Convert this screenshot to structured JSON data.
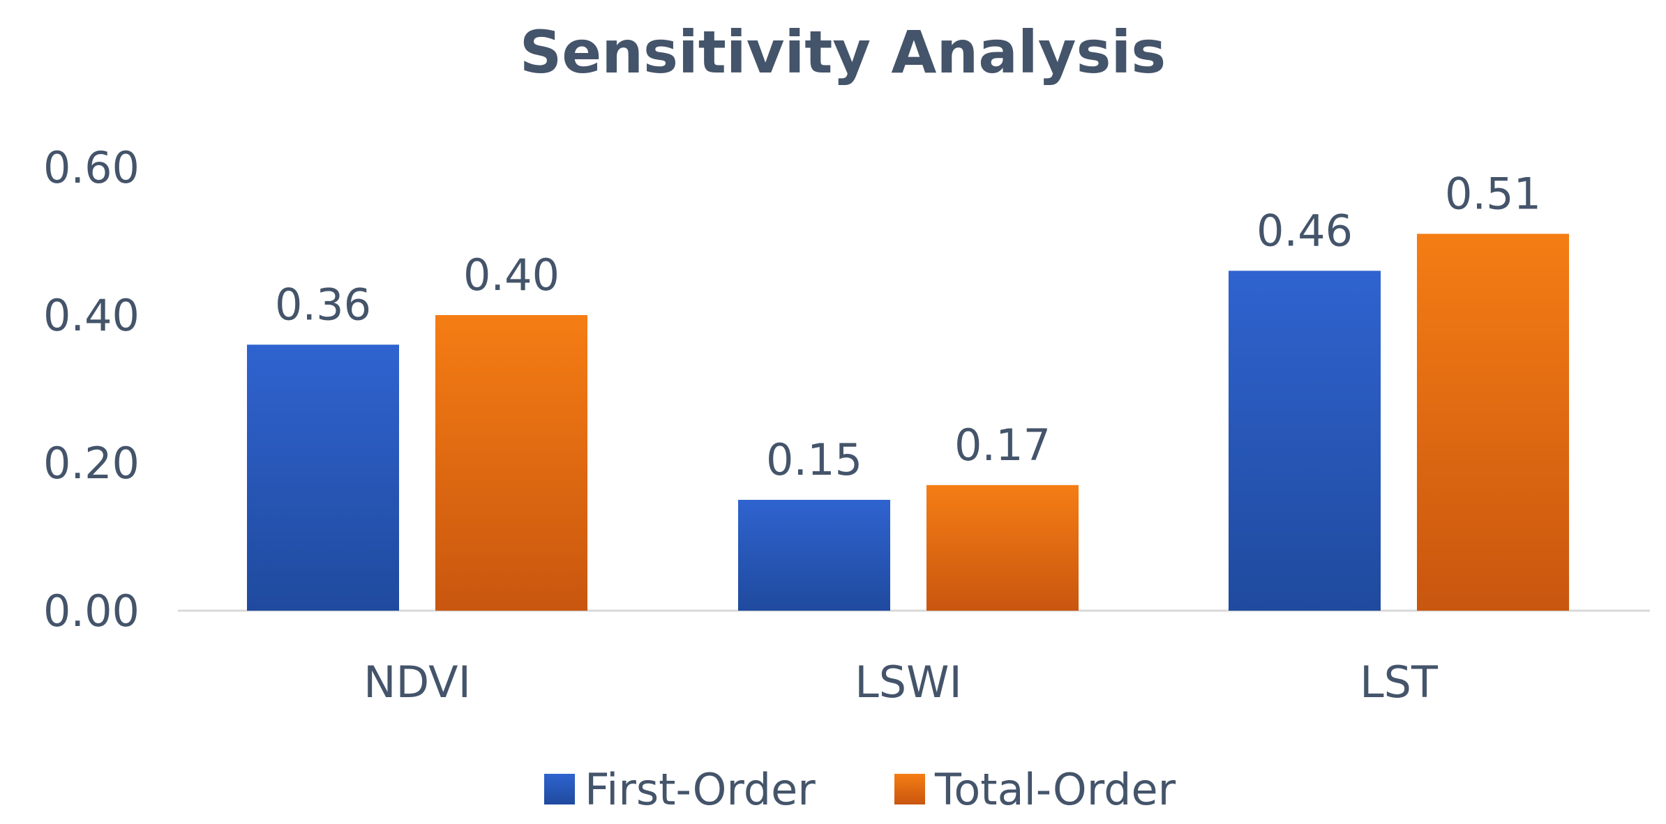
{
  "chart_data": {
    "type": "bar",
    "title": "Sensitivity Analysis",
    "categories": [
      "NDVI",
      "LSWI",
      "LST"
    ],
    "series": [
      {
        "name": "First-Order",
        "values": [
          0.36,
          0.15,
          0.46
        ],
        "labels": [
          "0.36",
          "0.15",
          "0.46"
        ],
        "color": "#2F63CF",
        "color_dark": "#1F4A9E"
      },
      {
        "name": "Total-Order",
        "values": [
          0.4,
          0.17,
          0.51
        ],
        "labels": [
          "0.40",
          "0.17",
          "0.51"
        ],
        "color": "#F57D14",
        "color_dark": "#C9560F"
      }
    ],
    "y_ticks": [
      0.0,
      0.2,
      0.4,
      0.6
    ],
    "y_tick_labels": [
      "0.00",
      "0.20",
      "0.40",
      "0.60"
    ],
    "ylim": [
      0,
      0.6
    ],
    "xlabel": "",
    "ylabel": "",
    "grid": false,
    "legend_position": "bottom"
  }
}
